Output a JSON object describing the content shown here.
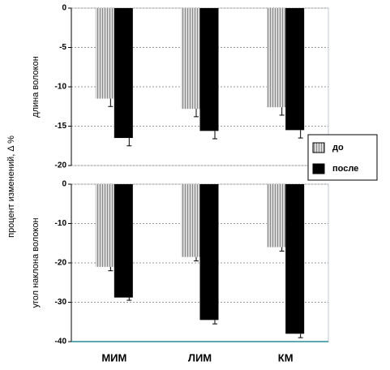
{
  "chart_data": [
    {
      "type": "bar",
      "ylabel": "длина волокон",
      "shared_ylabel": "процент изменений, Δ %",
      "categories": [
        null,
        null,
        null
      ],
      "ylim": [
        -20,
        0
      ],
      "yticks": [
        0,
        -5,
        -10,
        -15,
        -20
      ],
      "grid": true,
      "legend": "right",
      "series": [
        {
          "name": "до",
          "color": "#a8a8a8",
          "values": [
            -11.5,
            -12.8,
            -12.6
          ],
          "errors": [
            1.0,
            1.0,
            1.0
          ]
        },
        {
          "name": "после",
          "color": "#000000",
          "values": [
            -16.5,
            -15.6,
            -15.5
          ],
          "errors": [
            1.0,
            1.0,
            1.0
          ]
        }
      ]
    },
    {
      "type": "bar",
      "ylabel": "угол наклона волокон",
      "categories": [
        "МИМ",
        "ЛИМ",
        "КМ"
      ],
      "ylim": [
        -40,
        0
      ],
      "yticks": [
        0,
        -10,
        -20,
        -30,
        -40
      ],
      "grid": true,
      "series": [
        {
          "color": "#a8a8a8",
          "values": [
            -21,
            -18.5,
            -16
          ],
          "errors": [
            1.0,
            1.0,
            1.0
          ]
        },
        {
          "color": "#000000",
          "values": [
            -28.8,
            -34.5,
            -38
          ],
          "errors": [
            0.7,
            1.0,
            1.0
          ]
        }
      ]
    }
  ]
}
